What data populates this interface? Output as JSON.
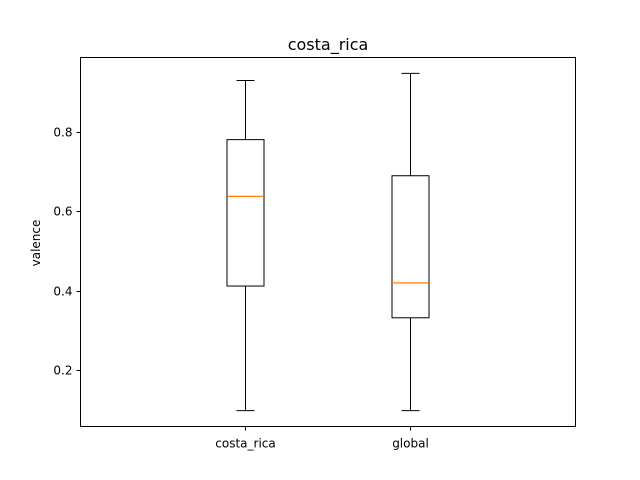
{
  "chart_data": {
    "type": "box",
    "title": "costa_rica",
    "xlabel": "",
    "ylabel": "valence",
    "ylim": [
      0.058,
      0.988
    ],
    "yticks": [
      0.2,
      0.4,
      0.6,
      0.8
    ],
    "ytick_labels": [
      "0.2",
      "0.4",
      "0.6",
      "0.8"
    ],
    "grid": false,
    "categories": [
      "costa_rica",
      "global"
    ],
    "boxes": [
      {
        "name": "costa_rica",
        "whislo": 0.098,
        "q1": 0.412,
        "median": 0.638,
        "q3": 0.781,
        "whishi": 0.93
      },
      {
        "name": "global",
        "whislo": 0.098,
        "q1": 0.332,
        "median": 0.42,
        "q3": 0.69,
        "whishi": 0.948
      }
    ],
    "colors": {
      "box": "#000000",
      "median": "#ff7f0e"
    }
  }
}
